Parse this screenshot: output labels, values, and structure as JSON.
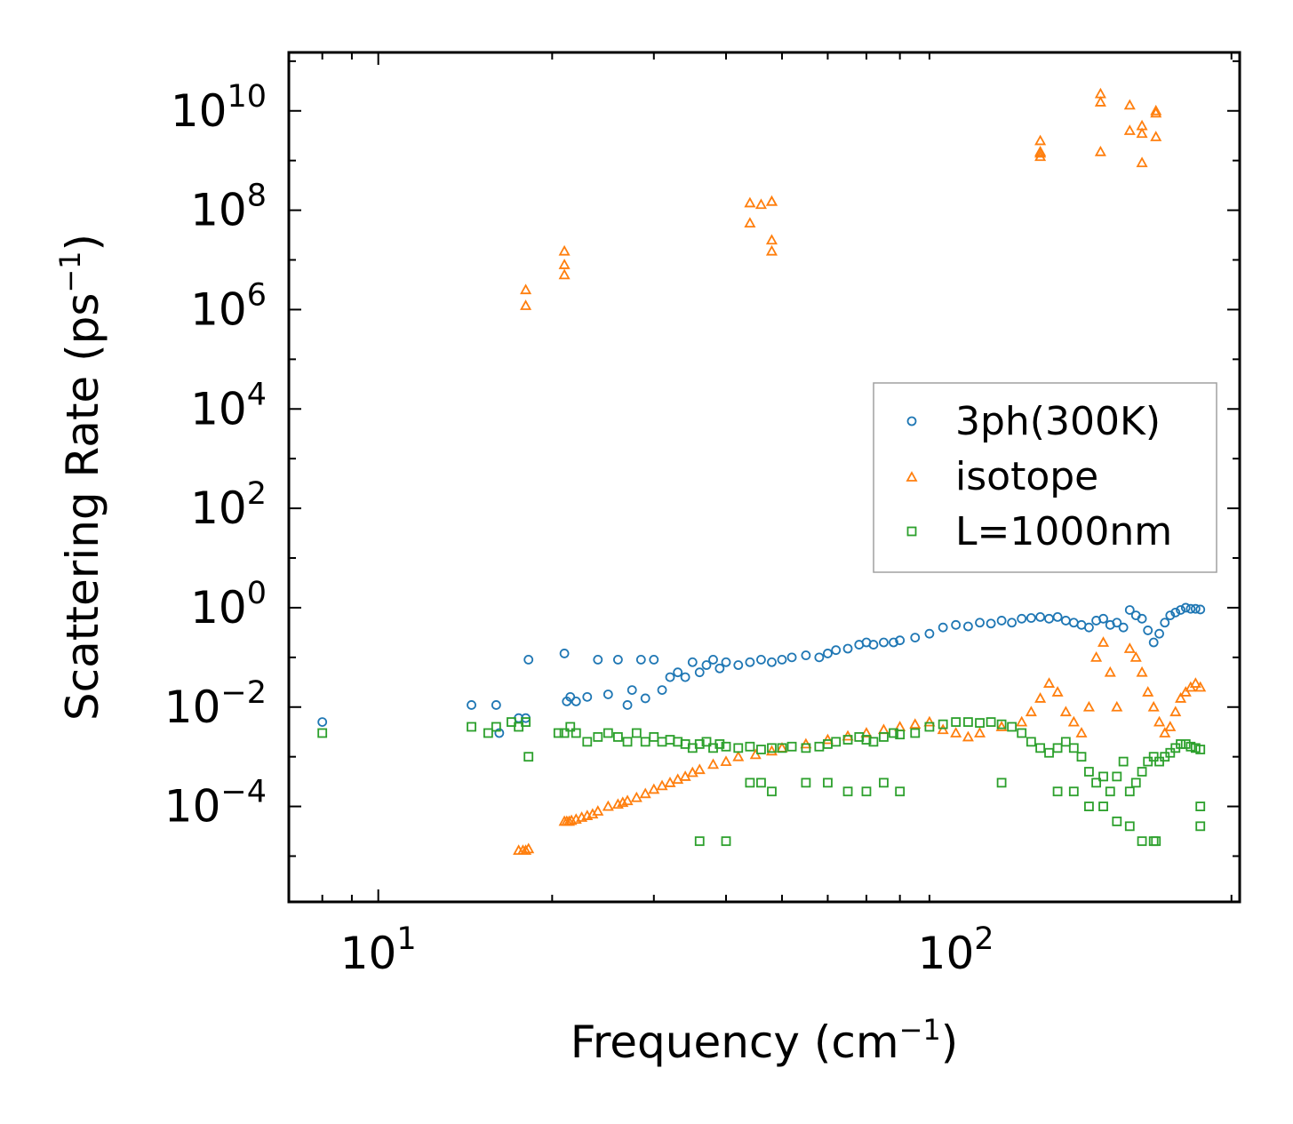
{
  "chart_data": {
    "type": "scatter",
    "title": "",
    "xlabel_main": "Frequency (cm",
    "xlabel_sup": "−1",
    "xlabel_end": ")",
    "ylabel_main": "Scattering Rate (ps",
    "ylabel_sup": "−1",
    "ylabel_end": ")",
    "xscale": "log",
    "yscale": "log",
    "xlim": [
      7,
      310
    ],
    "ylim": [
      1.2e-06,
      150000000000.0
    ],
    "x_ticks": [
      {
        "value": 10,
        "base": "10",
        "exp": "1"
      },
      {
        "value": 100,
        "base": "10",
        "exp": "2"
      }
    ],
    "y_ticks": [
      {
        "value": 10000000000.0,
        "base": "10",
        "exp": "10"
      },
      {
        "value": 100000000.0,
        "base": "10",
        "exp": "8"
      },
      {
        "value": 1000000.0,
        "base": "10",
        "exp": "6"
      },
      {
        "value": 10000.0,
        "base": "10",
        "exp": "4"
      },
      {
        "value": 100.0,
        "base": "10",
        "exp": "2"
      },
      {
        "value": 1,
        "base": "10",
        "exp": "0"
      },
      {
        "value": 0.01,
        "base": "10",
        "exp": "−2"
      },
      {
        "value": 0.0001,
        "base": "10",
        "exp": "−4"
      }
    ],
    "legend_position": "center-right",
    "series": [
      {
        "name": "3ph(300K)",
        "marker": "circle",
        "color": "#1f77b4",
        "x": [
          8,
          14.5,
          16,
          16.2,
          17.5,
          18,
          18.2,
          21,
          21.2,
          21.5,
          22,
          23,
          24,
          25,
          26,
          27,
          27.5,
          28.5,
          29,
          30,
          31,
          32,
          33,
          34,
          35,
          36,
          37,
          38,
          39,
          40,
          42,
          44,
          46,
          48,
          50,
          52,
          55,
          58,
          60,
          62,
          65,
          68,
          70,
          72,
          75,
          78,
          80,
          85,
          90,
          95,
          100,
          105,
          110,
          115,
          120,
          125,
          130,
          135,
          140,
          145,
          150,
          155,
          160,
          165,
          170,
          175,
          180,
          185,
          190,
          195,
          200,
          205,
          210,
          215,
          220,
          225,
          230,
          235,
          240,
          245,
          250,
          255,
          260,
          265
        ],
        "y": [
          0.005,
          0.011,
          0.011,
          0.003,
          0.006,
          0.006,
          0.09,
          0.12,
          0.013,
          0.016,
          0.013,
          0.016,
          0.09,
          0.018,
          0.09,
          0.011,
          0.022,
          0.09,
          0.015,
          0.09,
          0.022,
          0.04,
          0.05,
          0.04,
          0.08,
          0.05,
          0.07,
          0.09,
          0.06,
          0.08,
          0.07,
          0.08,
          0.09,
          0.08,
          0.09,
          0.1,
          0.11,
          0.1,
          0.12,
          0.14,
          0.15,
          0.18,
          0.2,
          0.18,
          0.2,
          0.2,
          0.22,
          0.25,
          0.3,
          0.4,
          0.45,
          0.42,
          0.5,
          0.48,
          0.55,
          0.5,
          0.6,
          0.62,
          0.65,
          0.6,
          0.65,
          0.55,
          0.5,
          0.45,
          0.4,
          0.55,
          0.6,
          0.45,
          0.5,
          0.4,
          0.9,
          0.7,
          0.6,
          0.35,
          0.2,
          0.3,
          0.5,
          0.7,
          0.8,
          0.9,
          1.0,
          0.95,
          0.95,
          0.92
        ]
      },
      {
        "name": "isotope",
        "marker": "triangle",
        "color": "#ff7f0e",
        "x": [
          17.5,
          17.8,
          18,
          18.2,
          21,
          21.2,
          21.4,
          21.6,
          22,
          22.5,
          23,
          23.5,
          24,
          25,
          26,
          26.5,
          27,
          28,
          29,
          30,
          31,
          32,
          33,
          34,
          35,
          36,
          38,
          40,
          42,
          45,
          48,
          50,
          55,
          60,
          65,
          70,
          75,
          80,
          85,
          90,
          95,
          100,
          105,
          110,
          120,
          130,
          135,
          140,
          145,
          150,
          155,
          160,
          165,
          170,
          175,
          180,
          185,
          190,
          200,
          205,
          210,
          215,
          220,
          225,
          230,
          235,
          240,
          245,
          250,
          255,
          260,
          265,
          18,
          18,
          21,
          21,
          21,
          44,
          44,
          46,
          48,
          48,
          48,
          48,
          140,
          140,
          140,
          140,
          178,
          178,
          178,
          200,
          200,
          210,
          210,
          210,
          222,
          222,
          222
        ],
        "y": [
          1.3e-05,
          1.3e-05,
          1.3e-05,
          1.4e-05,
          5e-05,
          5e-05,
          5e-05,
          5.2e-05,
          5.5e-05,
          6e-05,
          6.5e-05,
          7e-05,
          8e-05,
          0.0001,
          0.00011,
          0.00012,
          0.00013,
          0.00015,
          0.00018,
          0.00022,
          0.00026,
          0.0003,
          0.00035,
          0.0004,
          0.00048,
          0.00055,
          0.0007,
          0.0008,
          0.001,
          0.0011,
          0.0013,
          0.0015,
          0.0018,
          0.0022,
          0.0026,
          0.003,
          0.0035,
          0.004,
          0.0045,
          0.005,
          0.0035,
          0.003,
          0.0025,
          0.003,
          0.004,
          0.005,
          0.008,
          0.015,
          0.03,
          0.02,
          0.008,
          0.005,
          0.003,
          0.01,
          0.1,
          0.2,
          0.05,
          0.01,
          0.15,
          0.1,
          0.05,
          0.02,
          0.01,
          0.005,
          0.003,
          0.004,
          0.008,
          0.015,
          0.02,
          0.025,
          0.03,
          0.025,
          1200000.0,
          2500000.0,
          5000000.0,
          8000000.0,
          15000000.0,
          55000000.0,
          140000000.0,
          130000000.0,
          150000000.0,
          25000000.0,
          15000000.0,
          150000000.0,
          1200000000.0,
          1500000000.0,
          2500000000.0,
          1400000000.0,
          15000000000.0,
          22000000000.0,
          1500000000.0,
          13000000000.0,
          4000000000.0,
          3500000000.0,
          5000000000.0,
          900000000.0,
          3000000000.0,
          9000000000.0,
          10000000000.0
        ]
      },
      {
        "name": "L=1000nm",
        "marker": "square",
        "color": "#2ca02c",
        "x": [
          8,
          14.5,
          15.5,
          16,
          17,
          17.5,
          18,
          18.2,
          20.5,
          21,
          21.5,
          22,
          23,
          24,
          25,
          26,
          27,
          28,
          29,
          30,
          31,
          32,
          33,
          34,
          35,
          36,
          37,
          38,
          39,
          40,
          42,
          44,
          46,
          48,
          50,
          52,
          55,
          58,
          60,
          62,
          65,
          68,
          70,
          72,
          75,
          78,
          80,
          85,
          90,
          95,
          100,
          105,
          110,
          115,
          120,
          125,
          130,
          135,
          140,
          145,
          150,
          155,
          160,
          165,
          170,
          175,
          180,
          185,
          190,
          195,
          200,
          205,
          210,
          215,
          220,
          225,
          230,
          235,
          240,
          245,
          250,
          255,
          260,
          265,
          36,
          40,
          44,
          46,
          48,
          55,
          60,
          65,
          70,
          75,
          80,
          120,
          150,
          160,
          170,
          180,
          190,
          200,
          210,
          220,
          222,
          265,
          265
        ],
        "y": [
          0.003,
          0.004,
          0.003,
          0.004,
          0.005,
          0.004,
          0.005,
          0.001,
          0.003,
          0.003,
          0.004,
          0.003,
          0.002,
          0.0025,
          0.003,
          0.0025,
          0.002,
          0.003,
          0.002,
          0.0025,
          0.002,
          0.0022,
          0.002,
          0.0018,
          0.0015,
          0.0018,
          0.002,
          0.0015,
          0.0018,
          0.0016,
          0.0015,
          0.0016,
          0.0014,
          0.0015,
          0.0015,
          0.0016,
          0.0015,
          0.0016,
          0.0018,
          0.002,
          0.0022,
          0.0025,
          0.0022,
          0.002,
          0.0025,
          0.003,
          0.0028,
          0.003,
          0.004,
          0.0045,
          0.005,
          0.005,
          0.0048,
          0.005,
          0.0045,
          0.004,
          0.003,
          0.002,
          0.0015,
          0.0012,
          0.0015,
          0.002,
          0.0015,
          0.001,
          0.0005,
          0.0003,
          0.0004,
          0.0002,
          0.0004,
          0.0008,
          0.0002,
          0.0003,
          0.0005,
          0.0008,
          0.001,
          0.0008,
          0.001,
          0.0012,
          0.0015,
          0.0018,
          0.0018,
          0.0016,
          0.0015,
          0.0014,
          2e-05,
          2e-05,
          0.0003,
          0.0003,
          0.0002,
          0.0003,
          0.0003,
          0.0002,
          0.0002,
          0.0003,
          0.0002,
          0.0003,
          0.0002,
          0.0002,
          0.0001,
          0.0001,
          5e-05,
          4e-05,
          2e-05,
          2e-05,
          2e-05,
          0.0001,
          4e-05
        ]
      }
    ]
  }
}
